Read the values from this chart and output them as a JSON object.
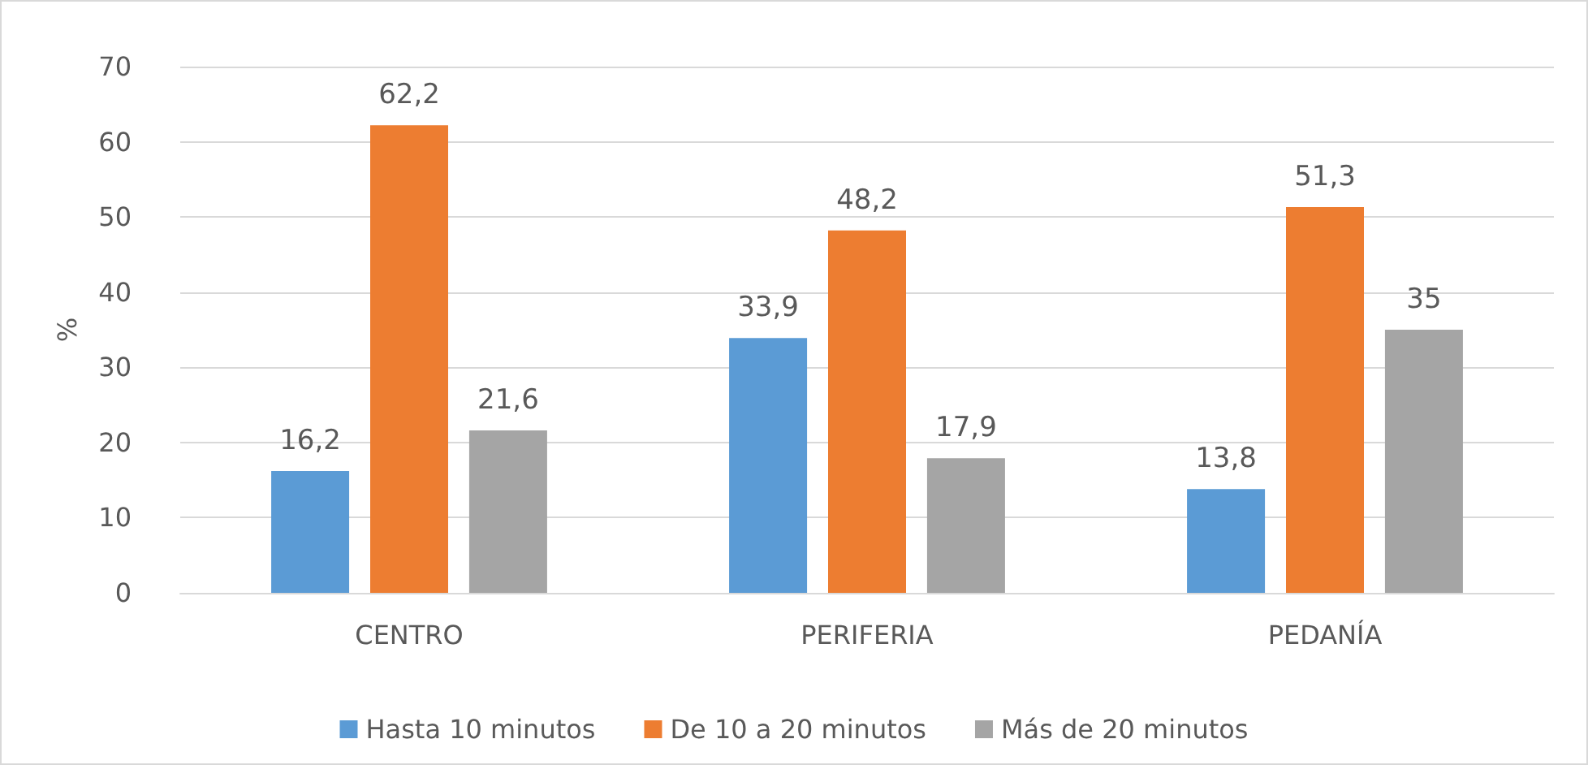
{
  "chart_data": {
    "type": "bar",
    "ylabel": "%",
    "categories": [
      "CENTRO",
      "PERIFERIA",
      "PEDANÍA"
    ],
    "series": [
      {
        "name": "Hasta 10 minutos",
        "color": "#5b9bd5",
        "values": [
          16.2,
          33.9,
          13.8
        ],
        "value_labels": [
          "16,2",
          "33,9",
          "13,8"
        ]
      },
      {
        "name": "De 10 a 20 minutos",
        "color": "#ed7d31",
        "values": [
          62.2,
          48.2,
          51.3
        ],
        "value_labels": [
          "62,2",
          "48,2",
          "51,3"
        ]
      },
      {
        "name": "Más de 20 minutos",
        "color": "#a5a5a5",
        "values": [
          21.6,
          17.9,
          35
        ],
        "value_labels": [
          "21,6",
          "17,9",
          "35"
        ]
      }
    ],
    "ylim": [
      0,
      70
    ],
    "yticks": [
      0,
      10,
      20,
      30,
      40,
      50,
      60,
      70
    ],
    "grid": "y",
    "legend": "bottom"
  }
}
